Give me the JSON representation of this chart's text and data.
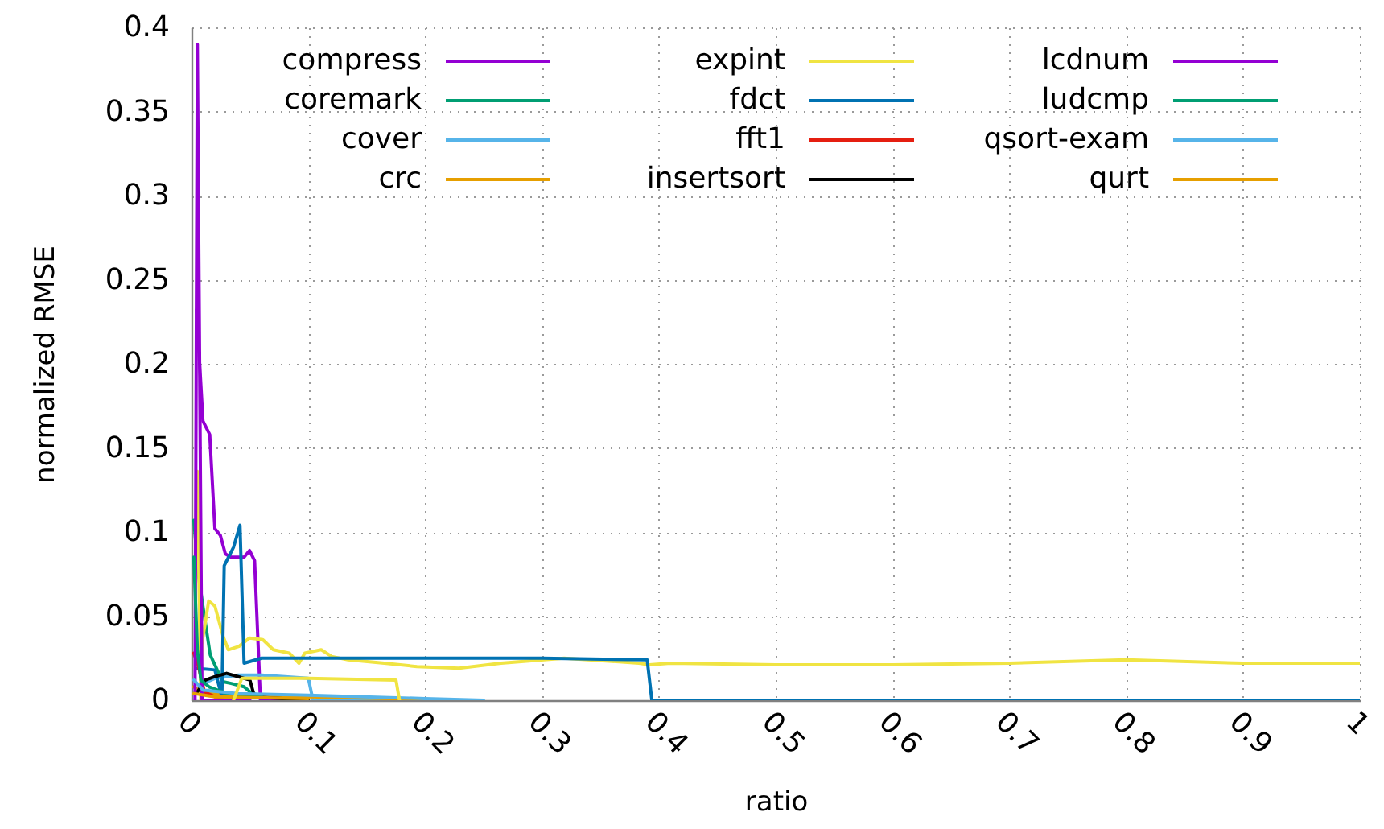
{
  "chart_data": {
    "type": "line",
    "xlabel": "ratio",
    "ylabel": "normalized RMSE",
    "xlim": [
      0,
      1
    ],
    "ylim": [
      0,
      0.4
    ],
    "xticks": [
      0,
      0.1,
      0.2,
      0.3,
      0.4,
      0.5,
      0.6,
      0.7,
      0.8,
      0.9,
      1
    ],
    "yticks": [
      0,
      0.05,
      0.1,
      0.15,
      0.2,
      0.25,
      0.3,
      0.35,
      0.4
    ],
    "grid": true,
    "legend": "top",
    "line_style": "solid",
    "series": [
      {
        "name": "compress",
        "color": "#9400d3",
        "x": [
          0.0043,
          0.0098,
          0.0156,
          0.02,
          0.0247,
          0.029,
          0.034,
          0.045,
          0.0497,
          0.054,
          0.059,
          0.1
        ],
        "values": [
          0.232,
          0.166,
          0.158,
          0.102,
          0.098,
          0.087,
          0.085,
          0.085,
          0.089,
          0.083,
          0.0,
          0.0
        ]
      },
      {
        "name": "coremark",
        "color": "#009e73",
        "x": [
          0.002,
          0.006,
          0.011,
          0.016,
          0.022,
          0.027,
          0.034,
          0.045,
          0.05,
          0.06,
          0.1
        ],
        "values": [
          0.107,
          0.074,
          0.05,
          0.027,
          0.018,
          0.011,
          0.01,
          0.008,
          0.005,
          0.002,
          0.001
        ]
      },
      {
        "name": "cover",
        "color": "#56b4e9",
        "x": [
          0.003,
          0.01,
          0.02,
          0.04,
          0.06,
          0.1,
          0.104,
          0.2
        ],
        "values": [
          0.005,
          0.01,
          0.013,
          0.015,
          0.015,
          0.013,
          0.0,
          0.0
        ]
      },
      {
        "name": "crc",
        "color": "#e69f00",
        "x": [
          0.002,
          0.01,
          0.05,
          0.1,
          0.17,
          0.2
        ],
        "values": [
          0.008,
          0.004,
          0.003,
          0.002,
          0.001,
          0.0
        ]
      },
      {
        "name": "expint",
        "color": "#f0e442",
        "x": [
          0.005,
          0.0079,
          0.0088,
          0.0147,
          0.02,
          0.027,
          0.0315,
          0.0406,
          0.0497,
          0.061,
          0.07,
          0.0837,
          0.092,
          0.097,
          0.111,
          0.12,
          0.134,
          0.165,
          0.193,
          0.229,
          0.265,
          0.319,
          0.383,
          0.392,
          0.41,
          0.5,
          0.6,
          0.7,
          0.8,
          0.9,
          1.0
        ],
        "values": [
          0.136,
          0.0,
          0.033,
          0.059,
          0.056,
          0.038,
          0.03,
          0.032,
          0.037,
          0.036,
          0.03,
          0.028,
          0.022,
          0.028,
          0.03,
          0.026,
          0.024,
          0.022,
          0.02,
          0.019,
          0.022,
          0.025,
          0.022,
          0.021,
          0.022,
          0.021,
          0.021,
          0.022,
          0.024,
          0.022,
          0.022
        ]
      },
      {
        "name": "fdct",
        "color": "#0072b2",
        "x": [
          0.004,
          0.02,
          0.026,
          0.028,
          0.036,
          0.0415,
          0.045,
          0.06,
          0.2,
          0.3,
          0.39,
          0.394,
          1.0
        ],
        "values": [
          0.019,
          0.018,
          0.002,
          0.08,
          0.091,
          0.104,
          0.022,
          0.025,
          0.025,
          0.025,
          0.024,
          0.0,
          0.0
        ]
      },
      {
        "name": "fft1",
        "color": "#e51e10",
        "x": [
          0.002,
          0.006,
          0.011,
          0.02,
          0.05
        ],
        "values": [
          0.028,
          0.02,
          0.005,
          0.002,
          0.001
        ]
      },
      {
        "name": "insertsort",
        "color": "#000000",
        "x": [
          0.005,
          0.012,
          0.02,
          0.03,
          0.04,
          0.05,
          0.054,
          0.1
        ],
        "values": [
          0.005,
          0.012,
          0.014,
          0.016,
          0.014,
          0.012,
          0.002,
          0.0
        ]
      },
      {
        "name": "lcdnum",
        "color": "#9400d3",
        "x": [
          0.003,
          0.005,
          0.009,
          0.05
        ],
        "values": [
          0.0,
          0.39,
          0.0,
          0.0
        ]
      },
      {
        "name": "ludcmp",
        "color": "#009e73",
        "x": [
          0.002,
          0.005,
          0.008,
          0.015,
          0.03,
          0.06
        ],
        "values": [
          0.085,
          0.03,
          0.012,
          0.008,
          0.004,
          0.002
        ]
      },
      {
        "name": "qsort-exam",
        "color": "#56b4e9",
        "x": [
          0.002,
          0.01,
          0.04,
          0.1,
          0.2,
          0.25
        ],
        "values": [
          0.012,
          0.006,
          0.004,
          0.003,
          0.001,
          0.0
        ]
      },
      {
        "name": "qurt",
        "color": "#e69f00",
        "x": [
          0.002,
          0.02,
          0.1
        ],
        "values": [
          0.004,
          0.002,
          0.001
        ]
      },
      {
        "color": "#f0e442",
        "x": [
          0.036,
          0.043,
          0.1,
          0.175,
          0.178
        ],
        "values": [
          0.0,
          0.013,
          0.013,
          0.012,
          0.0
        ]
      }
    ]
  }
}
